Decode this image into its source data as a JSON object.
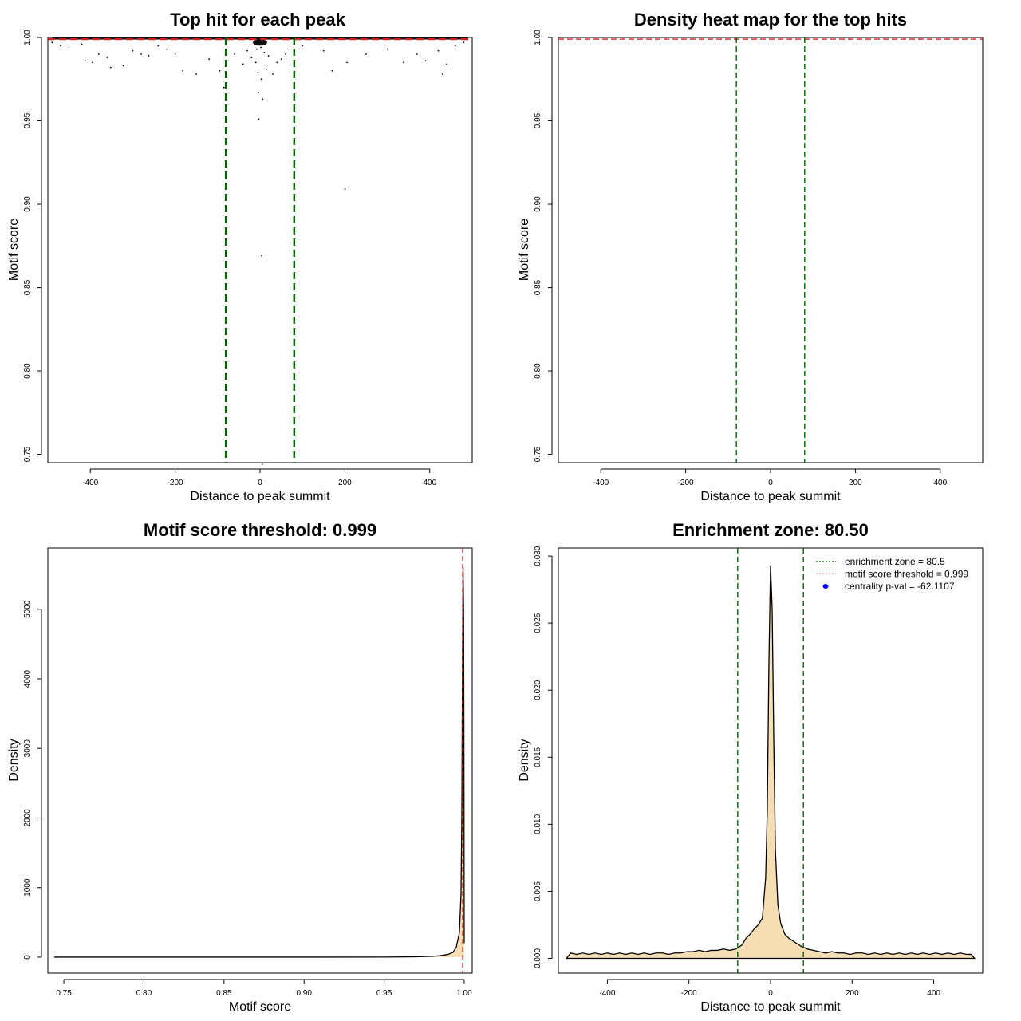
{
  "chart_data": [
    {
      "type": "scatter",
      "title": "Top hit for each peak",
      "xlabel": "Distance to peak summit",
      "ylabel": "Motif score",
      "xlim": [
        -500,
        500
      ],
      "ylim": [
        0.745,
        1.0
      ],
      "xticks": [
        -400,
        -200,
        0,
        200,
        400
      ],
      "yticks": [
        0.75,
        0.8,
        0.85,
        0.9,
        0.95,
        1.0
      ],
      "xtick_labels": [
        "-400",
        "-200",
        "0",
        "200",
        "400"
      ],
      "ytick_labels": [
        "0.75",
        "0.80",
        "0.85",
        "0.90",
        "0.95",
        "1.00"
      ],
      "vlines": [
        -80.5,
        80.5
      ],
      "hline": 0.999,
      "points": [
        [
          -490,
          0.997
        ],
        [
          -470,
          0.995
        ],
        [
          -450,
          0.993
        ],
        [
          -420,
          0.996
        ],
        [
          -412,
          0.986
        ],
        [
          -395,
          0.985
        ],
        [
          -380,
          0.99
        ],
        [
          -360,
          0.988
        ],
        [
          -352,
          0.982
        ],
        [
          -322,
          0.983
        ],
        [
          -300,
          0.992
        ],
        [
          -280,
          0.99
        ],
        [
          -262,
          0.989
        ],
        [
          -240,
          0.995
        ],
        [
          -220,
          0.993
        ],
        [
          -200,
          0.99
        ],
        [
          -182,
          0.98
        ],
        [
          -150,
          0.978
        ],
        [
          -120,
          0.987
        ],
        [
          -95,
          0.98
        ],
        [
          -85,
          0.97
        ],
        [
          -60,
          0.99
        ],
        [
          -40,
          0.984
        ],
        [
          -30,
          0.992
        ],
        [
          -20,
          0.988
        ],
        [
          -10,
          0.985
        ],
        [
          -8,
          0.993
        ],
        [
          -5,
          0.979
        ],
        [
          -4,
          0.967
        ],
        [
          -3,
          0.951
        ],
        [
          0,
          0.997
        ],
        [
          2,
          0.994
        ],
        [
          3,
          0.975
        ],
        [
          4,
          0.869
        ],
        [
          5,
          0.744
        ],
        [
          6,
          0.963
        ],
        [
          10,
          0.991
        ],
        [
          15,
          0.981
        ],
        [
          20,
          0.989
        ],
        [
          30,
          0.978
        ],
        [
          40,
          0.985
        ],
        [
          50,
          0.987
        ],
        [
          60,
          0.99
        ],
        [
          70,
          0.993
        ],
        [
          100,
          0.995
        ],
        [
          150,
          0.992
        ],
        [
          170,
          0.98
        ],
        [
          200,
          0.909
        ],
        [
          205,
          0.985
        ],
        [
          250,
          0.99
        ],
        [
          300,
          0.993
        ],
        [
          338,
          0.985
        ],
        [
          370,
          0.99
        ],
        [
          390,
          0.986
        ],
        [
          420,
          0.992
        ],
        [
          430,
          0.978
        ],
        [
          440,
          0.984
        ],
        [
          460,
          0.995
        ],
        [
          480,
          0.997
        ]
      ]
    },
    {
      "type": "heatmap",
      "title": "Density heat map for the top hits",
      "xlabel": "Distance to peak summit",
      "ylabel": "Motif score",
      "xlim": [
        -500,
        500
      ],
      "ylim": [
        0.745,
        1.0
      ],
      "xticks": [
        -400,
        -200,
        0,
        200,
        400
      ],
      "yticks": [
        0.75,
        0.8,
        0.85,
        0.9,
        0.95,
        1.0
      ],
      "xtick_labels": [
        "-400",
        "-200",
        "0",
        "200",
        "400"
      ],
      "ytick_labels": [
        "0.75",
        "0.80",
        "0.85",
        "0.90",
        "0.95",
        "1.00"
      ],
      "vlines": [
        -80.5,
        80.5
      ],
      "hline": 0.999
    },
    {
      "type": "area",
      "title": "Motif score threshold: 0.999",
      "xlabel": "Motif score",
      "ylabel": "Density",
      "xlim": [
        0.74,
        1.005
      ],
      "ylim": [
        -230,
        5880
      ],
      "xticks": [
        0.75,
        0.8,
        0.85,
        0.9,
        0.95,
        1.0
      ],
      "yticks": [
        0,
        1000,
        2000,
        3000,
        4000,
        5000
      ],
      "xtick_labels": [
        "0.75",
        "0.80",
        "0.85",
        "0.90",
        "0.95",
        "1.00"
      ],
      "ytick_labels": [
        "0",
        "1000",
        "2000",
        "3000",
        "4000",
        "5000"
      ],
      "vline": 0.999,
      "points": [
        [
          0.744,
          0
        ],
        [
          0.8,
          0
        ],
        [
          0.9,
          0
        ],
        [
          0.95,
          1
        ],
        [
          0.97,
          5
        ],
        [
          0.98,
          12
        ],
        [
          0.985,
          20
        ],
        [
          0.99,
          40
        ],
        [
          0.993,
          70
        ],
        [
          0.995,
          140
        ],
        [
          0.997,
          350
        ],
        [
          0.998,
          900
        ],
        [
          0.9985,
          2000
        ],
        [
          0.999,
          4500
        ],
        [
          0.9993,
          5600
        ],
        [
          0.9996,
          5000
        ],
        [
          0.9998,
          3500
        ],
        [
          1.0,
          200
        ]
      ]
    },
    {
      "type": "area",
      "title": "Enrichment zone: 80.50",
      "xlabel": "Distance to peak summit",
      "ylabel": "Density",
      "xlim": [
        -520,
        520
      ],
      "ylim": [
        -0.0011,
        0.0306
      ],
      "xticks": [
        -400,
        -200,
        0,
        200,
        400
      ],
      "yticks": [
        0.0,
        0.005,
        0.01,
        0.015,
        0.02,
        0.025,
        0.03
      ],
      "xtick_labels": [
        "-400",
        "-200",
        "0",
        "200",
        "400"
      ],
      "ytick_labels": [
        "0.000",
        "0.005",
        "0.010",
        "0.015",
        "0.020",
        "0.025",
        "0.030"
      ],
      "vlines": [
        -80.5,
        80.5
      ],
      "legend": [
        {
          "label": "enrichment zone = 80.5",
          "style": "dotted",
          "color": "#006400"
        },
        {
          "label": "motif score threshold = 0.999",
          "style": "dotted",
          "color": "#e03030"
        },
        {
          "label": "centrality p-val = -62.1107",
          "style": "point",
          "color": "#0000ff"
        }
      ],
      "legend_position": "top-right",
      "points": [
        [
          -500,
          0.0
        ],
        [
          -490,
          0.0004
        ],
        [
          -475,
          0.0003
        ],
        [
          -460,
          0.0004
        ],
        [
          -445,
          0.0003
        ],
        [
          -430,
          0.0004
        ],
        [
          -415,
          0.0003
        ],
        [
          -400,
          0.0004
        ],
        [
          -385,
          0.0003
        ],
        [
          -370,
          0.0004
        ],
        [
          -355,
          0.0003
        ],
        [
          -340,
          0.0004
        ],
        [
          -325,
          0.0003
        ],
        [
          -310,
          0.0004
        ],
        [
          -295,
          0.0003
        ],
        [
          -280,
          0.0004
        ],
        [
          -265,
          0.0004
        ],
        [
          -250,
          0.0003
        ],
        [
          -235,
          0.0004
        ],
        [
          -220,
          0.0004
        ],
        [
          -205,
          0.0005
        ],
        [
          -190,
          0.0005
        ],
        [
          -175,
          0.0006
        ],
        [
          -160,
          0.0005
        ],
        [
          -145,
          0.0006
        ],
        [
          -130,
          0.0006
        ],
        [
          -115,
          0.0007
        ],
        [
          -100,
          0.0006
        ],
        [
          -85,
          0.0007
        ],
        [
          -70,
          0.001
        ],
        [
          -60,
          0.0015
        ],
        [
          -50,
          0.0018
        ],
        [
          -40,
          0.0022
        ],
        [
          -30,
          0.0025
        ],
        [
          -20,
          0.003
        ],
        [
          -12,
          0.006
        ],
        [
          -8,
          0.011
        ],
        [
          -4,
          0.022
        ],
        [
          0,
          0.0293
        ],
        [
          4,
          0.026
        ],
        [
          8,
          0.016
        ],
        [
          12,
          0.008
        ],
        [
          18,
          0.004
        ],
        [
          25,
          0.0026
        ],
        [
          35,
          0.0018
        ],
        [
          45,
          0.0015
        ],
        [
          55,
          0.0013
        ],
        [
          65,
          0.0011
        ],
        [
          75,
          0.0009
        ],
        [
          90,
          0.0007
        ],
        [
          105,
          0.0006
        ],
        [
          120,
          0.0005
        ],
        [
          135,
          0.0004
        ],
        [
          150,
          0.0005
        ],
        [
          165,
          0.0004
        ],
        [
          180,
          0.0004
        ],
        [
          195,
          0.0003
        ],
        [
          210,
          0.0004
        ],
        [
          225,
          0.0004
        ],
        [
          240,
          0.0003
        ],
        [
          255,
          0.0004
        ],
        [
          270,
          0.0003
        ],
        [
          285,
          0.0004
        ],
        [
          300,
          0.0003
        ],
        [
          315,
          0.0004
        ],
        [
          330,
          0.0003
        ],
        [
          345,
          0.0004
        ],
        [
          360,
          0.0003
        ],
        [
          375,
          0.0004
        ],
        [
          390,
          0.0003
        ],
        [
          405,
          0.0004
        ],
        [
          420,
          0.0003
        ],
        [
          435,
          0.0004
        ],
        [
          450,
          0.0003
        ],
        [
          465,
          0.0004
        ],
        [
          480,
          0.0003
        ],
        [
          492,
          0.0003
        ],
        [
          500,
          0.0
        ]
      ]
    }
  ]
}
